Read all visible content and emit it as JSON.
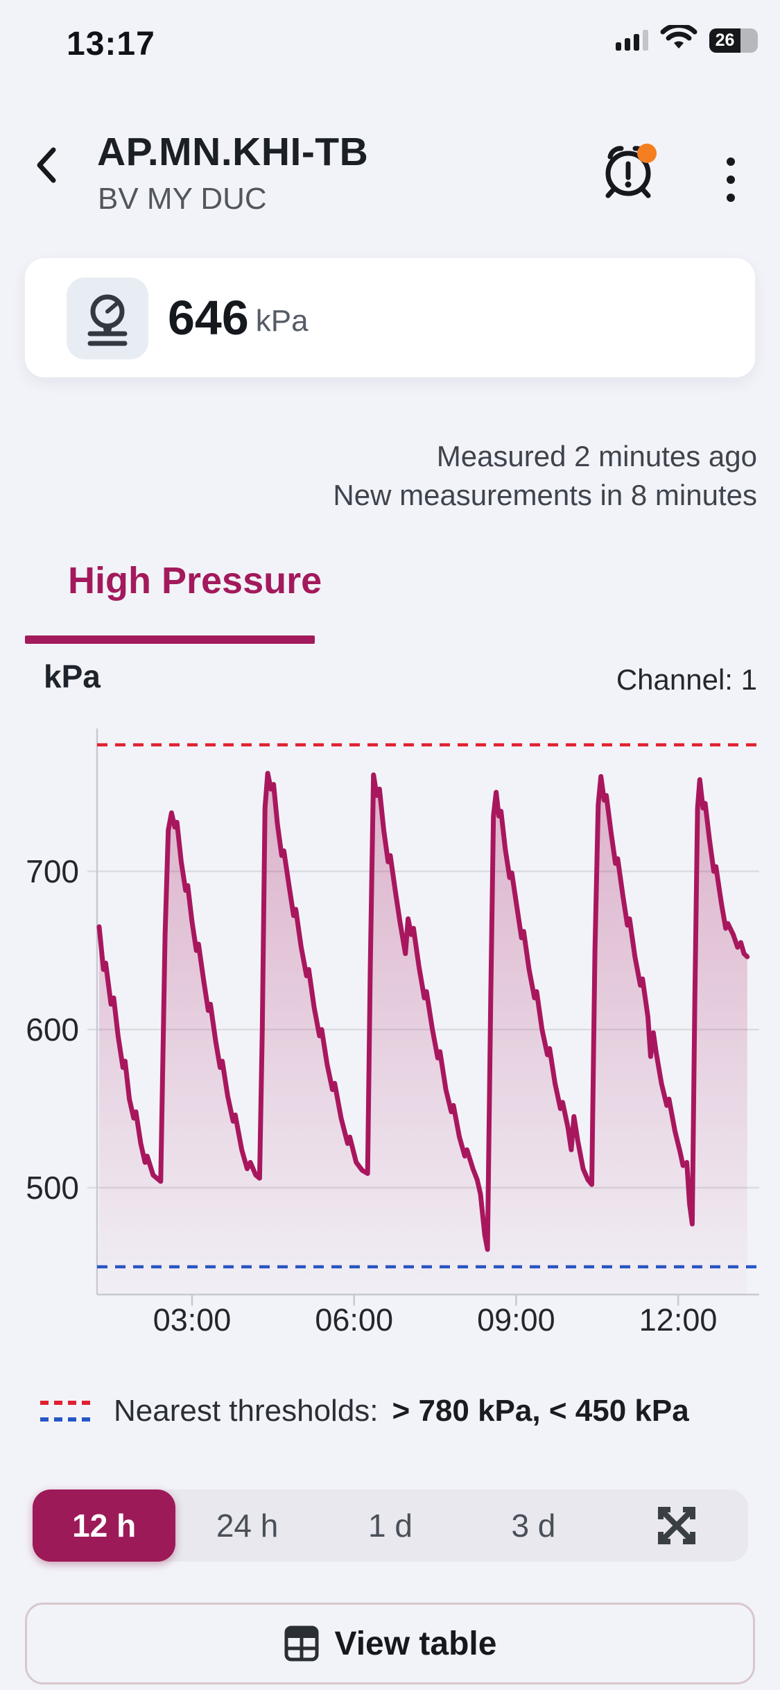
{
  "status_bar": {
    "time": "13:17",
    "battery_percent": "26"
  },
  "header": {
    "title": "AP.MN.KHI-TB",
    "subtitle": "BV MY DUC"
  },
  "reading": {
    "value": "646",
    "unit": "kPa"
  },
  "measured": {
    "line1": "Measured 2 minutes ago",
    "line2": "New measurements in 8 minutes"
  },
  "tabs": {
    "active": "High Pressure"
  },
  "chart_head": {
    "unit_label": "kPa",
    "channel_label": "Channel: 1"
  },
  "chart_data": {
    "type": "area",
    "title": "High Pressure",
    "ylabel": "kPa",
    "ylim": [
      432,
      790
    ],
    "xlim_hours": [
      1.28,
      13.28
    ],
    "grid": true,
    "y_ticks": [
      700,
      600,
      500
    ],
    "x_ticks": [
      {
        "t": 3,
        "label": "03:00"
      },
      {
        "t": 6,
        "label": "06:00"
      },
      {
        "t": 9,
        "label": "09:00"
      },
      {
        "t": 12,
        "label": "12:00"
      }
    ],
    "thresholds": [
      {
        "value": 780,
        "color": "#E02030",
        "label": "> 780 kPa"
      },
      {
        "value": 450,
        "color": "#2456C6",
        "label": "< 450 kPa"
      }
    ],
    "series": [
      {
        "name": "High Pressure (kPa), channel 1",
        "color": "#A8175E",
        "points": [
          [
            1.28,
            665
          ],
          [
            1.36,
            638
          ],
          [
            1.4,
            642
          ],
          [
            1.5,
            616
          ],
          [
            1.55,
            620
          ],
          [
            1.63,
            596
          ],
          [
            1.72,
            576
          ],
          [
            1.76,
            580
          ],
          [
            1.84,
            556
          ],
          [
            1.92,
            544
          ],
          [
            1.96,
            548
          ],
          [
            2.05,
            528
          ],
          [
            2.13,
            516
          ],
          [
            2.17,
            520
          ],
          [
            2.28,
            508
          ],
          [
            2.42,
            504
          ],
          [
            2.5,
            660
          ],
          [
            2.56,
            726
          ],
          [
            2.62,
            737
          ],
          [
            2.68,
            728
          ],
          [
            2.72,
            731
          ],
          [
            2.8,
            706
          ],
          [
            2.88,
            688
          ],
          [
            2.92,
            691
          ],
          [
            3.0,
            668
          ],
          [
            3.08,
            650
          ],
          [
            3.12,
            654
          ],
          [
            3.22,
            630
          ],
          [
            3.3,
            612
          ],
          [
            3.34,
            616
          ],
          [
            3.44,
            592
          ],
          [
            3.52,
            576
          ],
          [
            3.56,
            580
          ],
          [
            3.66,
            558
          ],
          [
            3.76,
            542
          ],
          [
            3.8,
            546
          ],
          [
            3.92,
            524
          ],
          [
            4.02,
            512
          ],
          [
            4.08,
            516
          ],
          [
            4.18,
            508
          ],
          [
            4.25,
            506
          ],
          [
            4.3,
            600
          ],
          [
            4.35,
            740
          ],
          [
            4.4,
            762
          ],
          [
            4.46,
            752
          ],
          [
            4.51,
            755
          ],
          [
            4.58,
            730
          ],
          [
            4.66,
            710
          ],
          [
            4.7,
            713
          ],
          [
            4.8,
            690
          ],
          [
            4.88,
            672
          ],
          [
            4.92,
            676
          ],
          [
            5.02,
            652
          ],
          [
            5.12,
            634
          ],
          [
            5.16,
            638
          ],
          [
            5.26,
            614
          ],
          [
            5.36,
            596
          ],
          [
            5.4,
            600
          ],
          [
            5.5,
            578
          ],
          [
            5.6,
            562
          ],
          [
            5.64,
            566
          ],
          [
            5.76,
            544
          ],
          [
            5.88,
            528
          ],
          [
            5.92,
            532
          ],
          [
            6.04,
            516
          ],
          [
            6.15,
            511
          ],
          [
            6.25,
            509
          ],
          [
            6.3,
            640
          ],
          [
            6.36,
            761
          ],
          [
            6.42,
            748
          ],
          [
            6.47,
            752
          ],
          [
            6.55,
            726
          ],
          [
            6.63,
            706
          ],
          [
            6.67,
            710
          ],
          [
            6.77,
            686
          ],
          [
            6.85,
            668
          ],
          [
            6.95,
            648
          ],
          [
            7.0,
            670
          ],
          [
            7.06,
            660
          ],
          [
            7.1,
            664
          ],
          [
            7.2,
            640
          ],
          [
            7.3,
            620
          ],
          [
            7.34,
            624
          ],
          [
            7.45,
            600
          ],
          [
            7.55,
            582
          ],
          [
            7.59,
            586
          ],
          [
            7.7,
            562
          ],
          [
            7.8,
            548
          ],
          [
            7.84,
            552
          ],
          [
            7.95,
            532
          ],
          [
            8.05,
            520
          ],
          [
            8.09,
            524
          ],
          [
            8.2,
            512
          ],
          [
            8.28,
            505
          ],
          [
            8.34,
            496
          ],
          [
            8.42,
            470
          ],
          [
            8.47,
            461
          ],
          [
            8.53,
            620
          ],
          [
            8.58,
            735
          ],
          [
            8.63,
            750
          ],
          [
            8.68,
            735
          ],
          [
            8.72,
            738
          ],
          [
            8.8,
            714
          ],
          [
            8.88,
            696
          ],
          [
            8.92,
            699
          ],
          [
            9.02,
            676
          ],
          [
            9.1,
            658
          ],
          [
            9.14,
            662
          ],
          [
            9.24,
            638
          ],
          [
            9.34,
            620
          ],
          [
            9.38,
            624
          ],
          [
            9.48,
            600
          ],
          [
            9.58,
            584
          ],
          [
            9.62,
            588
          ],
          [
            9.72,
            566
          ],
          [
            9.82,
            550
          ],
          [
            9.86,
            554
          ],
          [
            9.96,
            538
          ],
          [
            10.02,
            524
          ],
          [
            10.07,
            545
          ],
          [
            10.14,
            530
          ],
          [
            10.24,
            512
          ],
          [
            10.33,
            505
          ],
          [
            10.4,
            502
          ],
          [
            10.46,
            650
          ],
          [
            10.52,
            742
          ],
          [
            10.57,
            760
          ],
          [
            10.63,
            745
          ],
          [
            10.67,
            748
          ],
          [
            10.76,
            724
          ],
          [
            10.84,
            705
          ],
          [
            10.88,
            708
          ],
          [
            10.98,
            684
          ],
          [
            11.06,
            666
          ],
          [
            11.1,
            670
          ],
          [
            11.2,
            646
          ],
          [
            11.3,
            628
          ],
          [
            11.34,
            632
          ],
          [
            11.44,
            608
          ],
          [
            11.49,
            583
          ],
          [
            11.54,
            598
          ],
          [
            11.59,
            586
          ],
          [
            11.69,
            566
          ],
          [
            11.79,
            552
          ],
          [
            11.83,
            556
          ],
          [
            11.94,
            536
          ],
          [
            12.04,
            522
          ],
          [
            12.09,
            514
          ],
          [
            12.16,
            516
          ],
          [
            12.21,
            490
          ],
          [
            12.26,
            477
          ],
          [
            12.31,
            620
          ],
          [
            12.36,
            740
          ],
          [
            12.4,
            758
          ],
          [
            12.46,
            740
          ],
          [
            12.5,
            743
          ],
          [
            12.58,
            720
          ],
          [
            12.66,
            700
          ],
          [
            12.7,
            703
          ],
          [
            12.8,
            680
          ],
          [
            12.88,
            664
          ],
          [
            12.92,
            667
          ],
          [
            13.02,
            660
          ],
          [
            13.1,
            652
          ],
          [
            13.16,
            655
          ],
          [
            13.22,
            648
          ],
          [
            13.28,
            646
          ]
        ]
      }
    ]
  },
  "legend": {
    "label": "Nearest thresholds:",
    "value": "> 780 kPa, < 450 kPa"
  },
  "range_selector": {
    "options": [
      "12 h",
      "24 h",
      "1 d",
      "3 d"
    ],
    "selected": "12 h"
  },
  "actions": {
    "view_table": "View table"
  },
  "colors": {
    "accent": "#A21A5C",
    "line": "#A8175E",
    "high_threshold": "#E02030",
    "low_threshold": "#2456C6",
    "background": "#F2F3F8",
    "alarm_badge": "#F57E20"
  }
}
